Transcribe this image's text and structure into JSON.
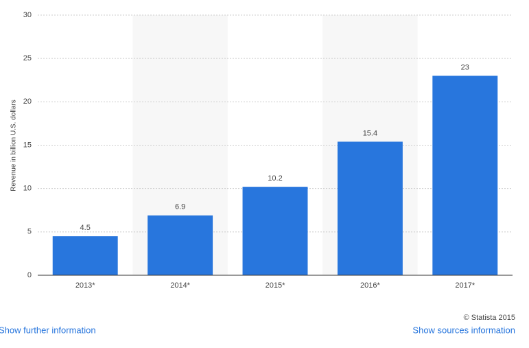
{
  "chart_data": {
    "type": "bar",
    "y_label": "Revenue in billion U.S. dollars",
    "categories": [
      "2013*",
      "2014*",
      "2015*",
      "2016*",
      "2017*"
    ],
    "values": [
      4.5,
      6.9,
      10.2,
      15.4,
      23
    ],
    "color": "#2876dd",
    "ylim": [
      0,
      30
    ],
    "yticks": [
      0,
      5,
      10,
      15,
      20,
      25,
      30
    ],
    "grid": true
  },
  "footer": {
    "copyright": "© Statista 2015",
    "further_link": "Show further information",
    "sources_link": "Show sources information"
  }
}
